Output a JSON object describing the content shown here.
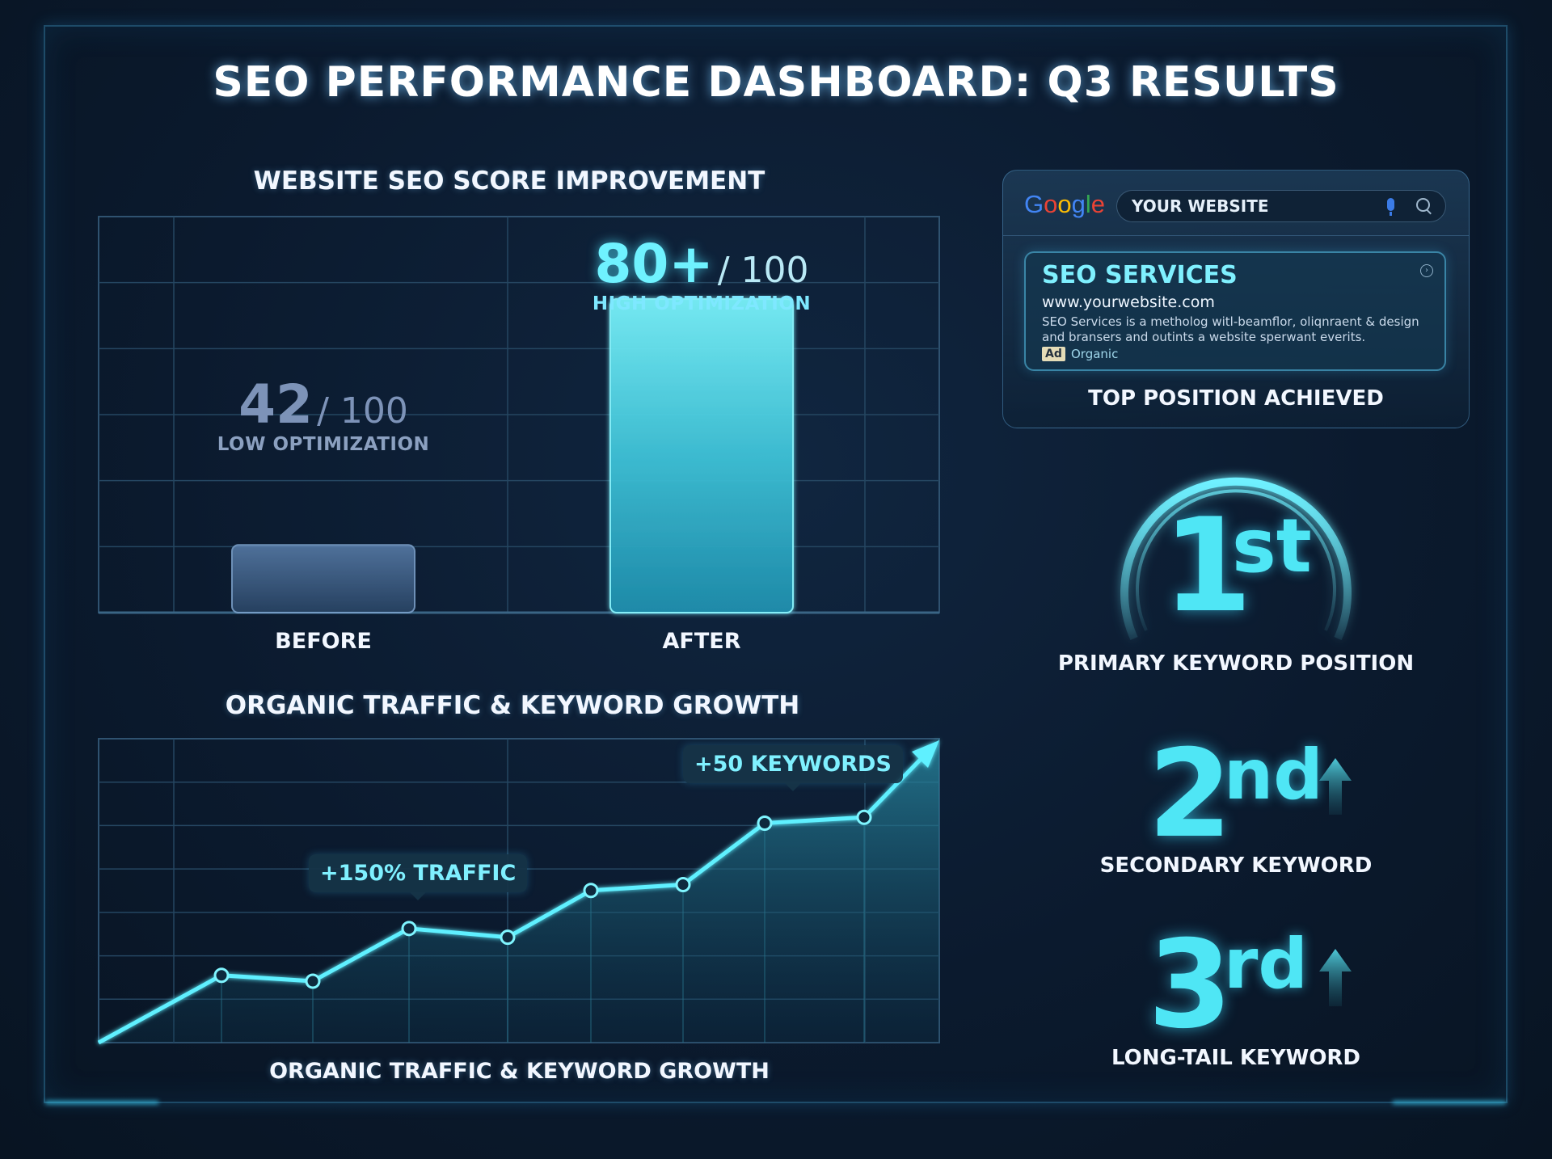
{
  "title": "SEO PERFORMANCE DASHBOARD: Q3 RESULTS",
  "score_section": {
    "title": "WEBSITE SEO SCORE IMPROVEMENT",
    "before": {
      "label": "BEFORE",
      "score": "42",
      "max": "/ 100",
      "desc": "LOW OPTIMIZATION"
    },
    "after": {
      "label": "AFTER",
      "score": "80+",
      "max": "/ 100",
      "desc": "HIGH OPTIMIZATION"
    }
  },
  "traffic_section": {
    "title": "ORGANIC TRAFFIC & KEYWORD GROWTH",
    "footer": "ORGANIC TRAFFIC & KEYWORD GROWTH",
    "callout_traffic": "+150% TRAFFIC",
    "callout_keywords": "+50 KEYWORDS"
  },
  "search": {
    "logo": "Google",
    "query": "YOUR WEBSITE",
    "result_title": "SEO SERVICES",
    "result_url": "www.yourwebsite.com",
    "result_snippet": "SEO Services is a metholog witl-beamflor, oliqnraent & design and bransers and outints a website sperwant everits.",
    "badge": "Ad",
    "badge_type": "Organic",
    "caption": "TOP POSITION ACHIEVED"
  },
  "rankings": [
    {
      "num": "1",
      "suffix": "st",
      "label": "PRIMARY KEYWORD POSITION"
    },
    {
      "num": "2",
      "suffix": "nd",
      "label": "SECONDARY KEYWORD"
    },
    {
      "num": "3",
      "suffix": "rd",
      "label": "LONG-TAIL KEYWORD"
    }
  ],
  "colors": {
    "accent": "#4fe6f5",
    "line": "#3fe0f0",
    "bar_before": "#4a6f9c",
    "bar_after": "#5ae4ef"
  },
  "chart_data": [
    {
      "type": "bar",
      "title": "WEBSITE SEO SCORE IMPROVEMENT",
      "categories": [
        "BEFORE",
        "AFTER"
      ],
      "values": [
        42,
        80
      ],
      "ylim": [
        0,
        100
      ],
      "grid": true
    },
    {
      "type": "area",
      "title": "ORGANIC TRAFFIC & KEYWORD GROWTH",
      "x": [
        0,
        1,
        2,
        3,
        4,
        5,
        6,
        7,
        8,
        9
      ],
      "values": [
        0,
        23,
        21,
        39,
        36,
        52,
        54,
        75,
        77,
        100
      ],
      "annotations": [
        {
          "text": "+150% TRAFFIC",
          "x": 3
        },
        {
          "text": "+50 KEYWORDS",
          "x": 7
        }
      ],
      "grid": true
    }
  ]
}
